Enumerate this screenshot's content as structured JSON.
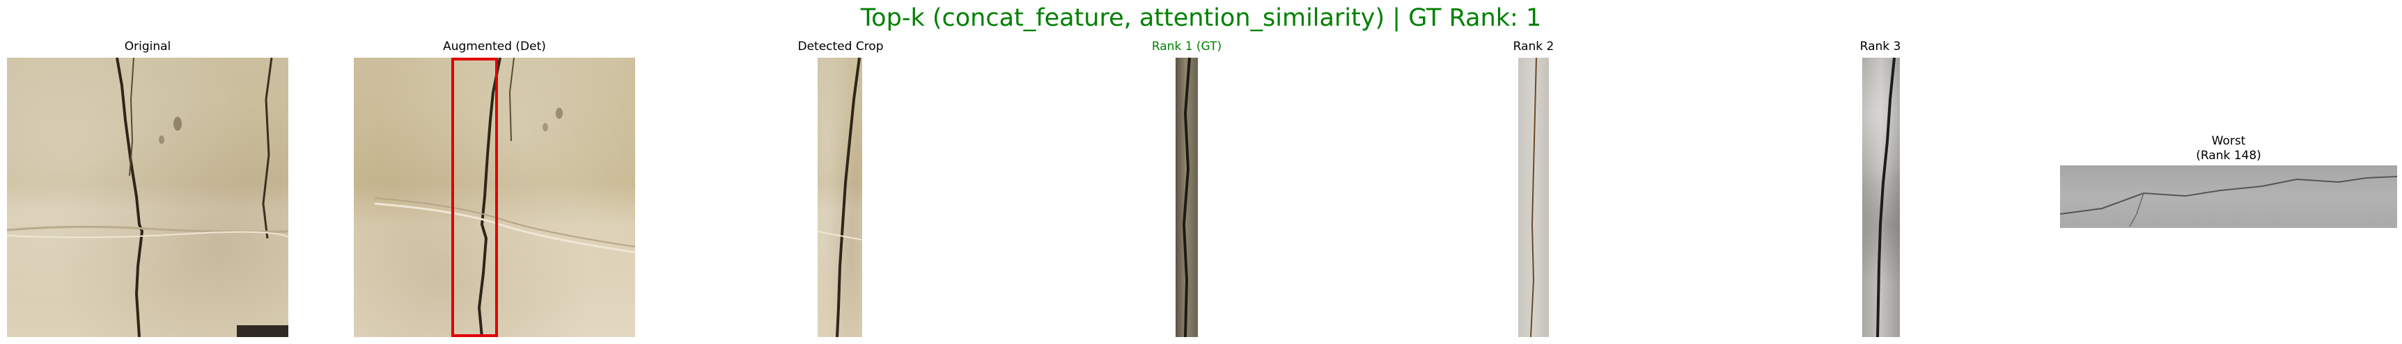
{
  "figure": {
    "title": "Top-k (concat_feature, attention_similarity) | GT Rank: 1",
    "title_color": "#008000",
    "gt_color": "#008000",
    "box_color": "#e00000"
  },
  "panels": [
    {
      "label": "Original",
      "label_color": "#000000"
    },
    {
      "label": "Augmented (Det)",
      "label_color": "#000000"
    },
    {
      "label": "Detected Crop",
      "label_color": "#000000"
    },
    {
      "label": "Rank 1 (GT)",
      "label_color": "#008000"
    },
    {
      "label": "Rank 2",
      "label_color": "#000000"
    },
    {
      "label": "Rank 3",
      "label_color": "#000000"
    },
    {
      "label": "Worst\n(Rank 148)",
      "label_color": "#000000"
    }
  ]
}
